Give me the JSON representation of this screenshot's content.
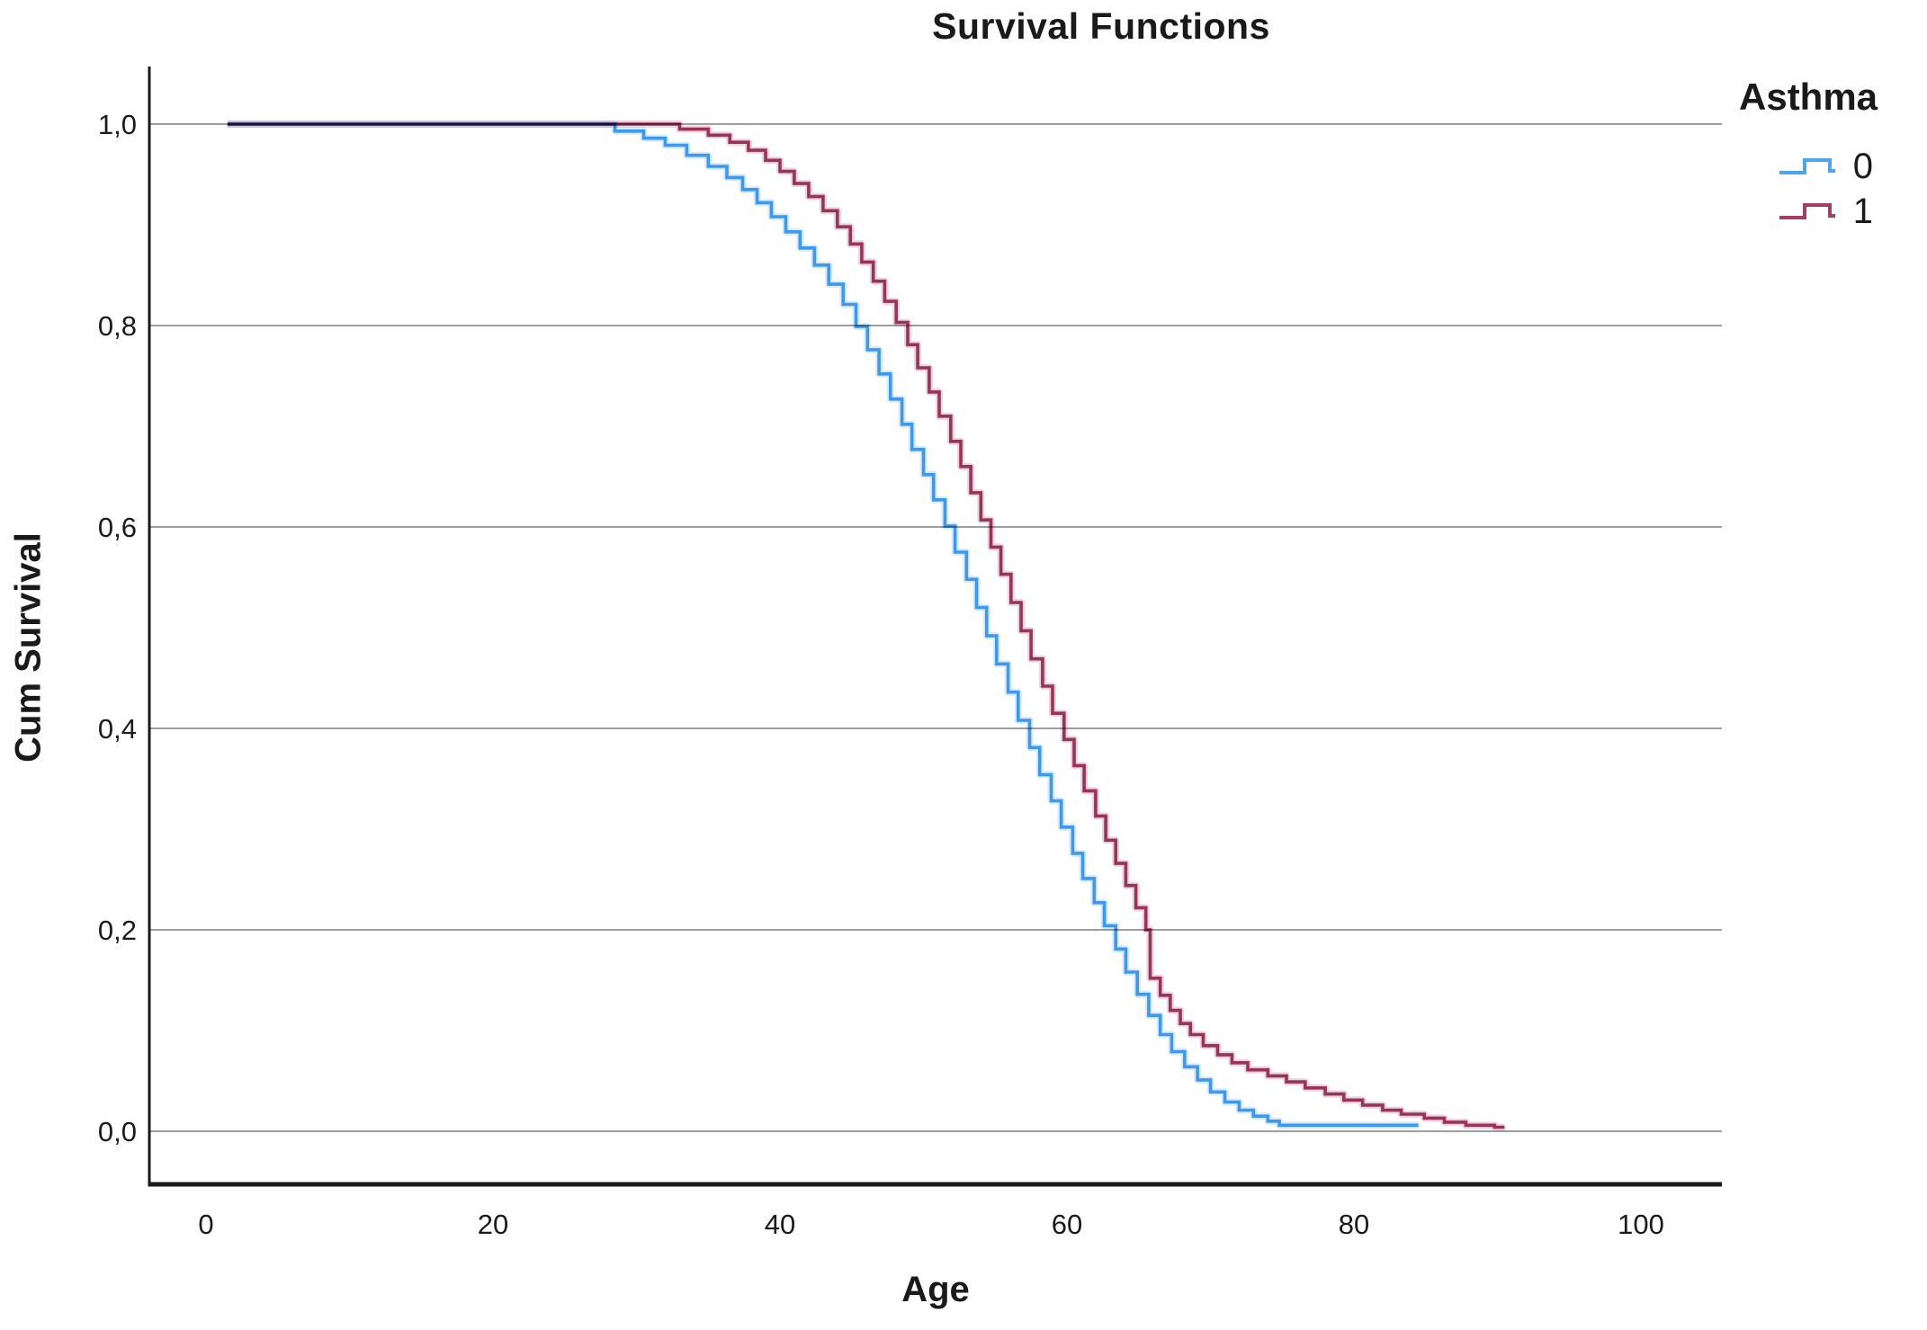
{
  "chart_data": {
    "type": "line",
    "subtype": "step-survival (Kaplan-Meier)",
    "title": "Survival Functions",
    "xlabel": "Age",
    "ylabel": "Cum Survival",
    "xlim": [
      0,
      100
    ],
    "ylim": [
      0.0,
      1.0
    ],
    "grid": "horizontal-only",
    "x_ticks": [
      {
        "value": 0,
        "label": "0"
      },
      {
        "value": 20,
        "label": "20"
      },
      {
        "value": 40,
        "label": "40"
      },
      {
        "value": 60,
        "label": "60"
      },
      {
        "value": 80,
        "label": "80"
      },
      {
        "value": 100,
        "label": "100"
      }
    ],
    "y_ticks": [
      {
        "value": 1.0,
        "label": "1,0"
      },
      {
        "value": 0.8,
        "label": "0,8"
      },
      {
        "value": 0.6,
        "label": "0,6"
      },
      {
        "value": 0.4,
        "label": "0,4"
      },
      {
        "value": 0.2,
        "label": "0,2"
      },
      {
        "value": 0.0,
        "label": "0,0"
      }
    ],
    "colors": {
      "axis": "#1a1a1a",
      "grid": "#9e9e9e",
      "text": "#1a1a1a"
    },
    "legend": {
      "title": "Asthma",
      "position": "top-right",
      "entries": [
        {
          "label": "0",
          "color": "#4BA5F2"
        },
        {
          "label": "1",
          "color": "#A63D66"
        }
      ]
    },
    "series": [
      {
        "name": "0",
        "color": "#4BA5F2",
        "steps": [
          [
            1.5,
            1.0
          ],
          [
            28.5,
            0.993
          ],
          [
            30.5,
            0.986
          ],
          [
            32.0,
            0.979
          ],
          [
            33.5,
            0.969
          ],
          [
            35.0,
            0.958
          ],
          [
            36.3,
            0.947
          ],
          [
            37.4,
            0.935
          ],
          [
            38.4,
            0.922
          ],
          [
            39.4,
            0.908
          ],
          [
            40.4,
            0.893
          ],
          [
            41.4,
            0.877
          ],
          [
            42.4,
            0.86
          ],
          [
            43.4,
            0.841
          ],
          [
            44.4,
            0.821
          ],
          [
            45.3,
            0.799
          ],
          [
            46.1,
            0.776
          ],
          [
            46.9,
            0.752
          ],
          [
            47.7,
            0.727
          ],
          [
            48.5,
            0.702
          ],
          [
            49.2,
            0.677
          ],
          [
            50.0,
            0.652
          ],
          [
            50.7,
            0.627
          ],
          [
            51.5,
            0.601
          ],
          [
            52.2,
            0.575
          ],
          [
            53.0,
            0.548
          ],
          [
            53.7,
            0.52
          ],
          [
            54.4,
            0.492
          ],
          [
            55.1,
            0.464
          ],
          [
            55.9,
            0.436
          ],
          [
            56.6,
            0.408
          ],
          [
            57.4,
            0.381
          ],
          [
            58.1,
            0.354
          ],
          [
            58.9,
            0.328
          ],
          [
            59.6,
            0.302
          ],
          [
            60.4,
            0.276
          ],
          [
            61.1,
            0.251
          ],
          [
            61.9,
            0.227
          ],
          [
            62.6,
            0.204
          ],
          [
            63.4,
            0.181
          ],
          [
            64.1,
            0.158
          ],
          [
            64.9,
            0.136
          ],
          [
            65.7,
            0.115
          ],
          [
            66.5,
            0.096
          ],
          [
            67.3,
            0.079
          ],
          [
            68.2,
            0.064
          ],
          [
            69.1,
            0.051
          ],
          [
            70.0,
            0.039
          ],
          [
            71.0,
            0.029
          ],
          [
            72.0,
            0.021
          ],
          [
            73.0,
            0.015
          ],
          [
            74.0,
            0.01
          ],
          [
            74.8,
            0.006
          ],
          [
            84.5,
            0.006
          ]
        ]
      },
      {
        "name": "1",
        "color": "#A63D66",
        "steps": [
          [
            1.5,
            1.0
          ],
          [
            33.0,
            0.995
          ],
          [
            35.0,
            0.989
          ],
          [
            36.5,
            0.982
          ],
          [
            37.8,
            0.974
          ],
          [
            39.0,
            0.964
          ],
          [
            40.0,
            0.953
          ],
          [
            41.0,
            0.941
          ],
          [
            42.0,
            0.928
          ],
          [
            43.0,
            0.914
          ],
          [
            44.0,
            0.898
          ],
          [
            44.9,
            0.881
          ],
          [
            45.7,
            0.863
          ],
          [
            46.5,
            0.844
          ],
          [
            47.3,
            0.824
          ],
          [
            48.1,
            0.803
          ],
          [
            48.9,
            0.781
          ],
          [
            49.6,
            0.758
          ],
          [
            50.4,
            0.734
          ],
          [
            51.1,
            0.71
          ],
          [
            51.9,
            0.685
          ],
          [
            52.6,
            0.66
          ],
          [
            53.3,
            0.634
          ],
          [
            54.0,
            0.607
          ],
          [
            54.7,
            0.58
          ],
          [
            55.4,
            0.553
          ],
          [
            56.1,
            0.525
          ],
          [
            56.8,
            0.497
          ],
          [
            57.5,
            0.469
          ],
          [
            58.3,
            0.442
          ],
          [
            59.0,
            0.415
          ],
          [
            59.8,
            0.389
          ],
          [
            60.5,
            0.363
          ],
          [
            61.2,
            0.338
          ],
          [
            62.0,
            0.313
          ],
          [
            62.7,
            0.289
          ],
          [
            63.4,
            0.266
          ],
          [
            64.1,
            0.244
          ],
          [
            64.8,
            0.222
          ],
          [
            65.5,
            0.2
          ],
          [
            65.8,
            0.152
          ],
          [
            66.5,
            0.135
          ],
          [
            67.2,
            0.12
          ],
          [
            67.9,
            0.107
          ],
          [
            68.6,
            0.096
          ],
          [
            69.5,
            0.085
          ],
          [
            70.5,
            0.076
          ],
          [
            71.5,
            0.068
          ],
          [
            72.6,
            0.061
          ],
          [
            74.0,
            0.055
          ],
          [
            75.3,
            0.049
          ],
          [
            76.6,
            0.043
          ],
          [
            78.0,
            0.037
          ],
          [
            79.3,
            0.031
          ],
          [
            80.6,
            0.026
          ],
          [
            82.0,
            0.021
          ],
          [
            83.3,
            0.017
          ],
          [
            84.9,
            0.013
          ],
          [
            86.3,
            0.009
          ],
          [
            87.8,
            0.006
          ],
          [
            89.8,
            0.004
          ],
          [
            90.5,
            0.004
          ]
        ]
      }
    ]
  }
}
